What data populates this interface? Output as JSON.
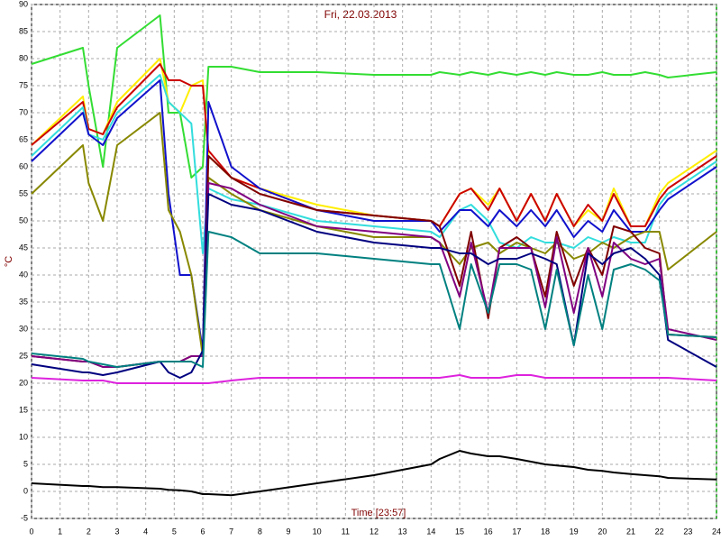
{
  "chart_data": {
    "type": "line",
    "title": "Fri, 22.03.2013",
    "y_label": "°C",
    "x_label": "Time [23:57]",
    "x": [
      0,
      1.8,
      2,
      2.5,
      3,
      4.5,
      4.8,
      5.2,
      5.6,
      6,
      6.2,
      7,
      8,
      10,
      12,
      14,
      14.3,
      15,
      15.4,
      16,
      16.4,
      17,
      17.5,
      18,
      18.4,
      19,
      19.5,
      20,
      20.4,
      21,
      21.5,
      22,
      22.3,
      24
    ],
    "series": [
      {
        "color": "#33dd33",
        "values": [
          79,
          82,
          75,
          60,
          82,
          88,
          70,
          70,
          58,
          60,
          78.5,
          78.5,
          77.5,
          77.5,
          77,
          77,
          77.5,
          77,
          77.5,
          77,
          77.5,
          77,
          77.5,
          77,
          77.5,
          77,
          77,
          77.5,
          77,
          77,
          77.5,
          77,
          76.5,
          77.5
        ]
      },
      {
        "color": "#ffee00",
        "values": [
          64,
          73,
          67,
          66,
          72,
          80,
          72,
          70,
          75,
          76,
          62,
          58,
          56,
          53,
          51,
          50,
          49,
          55,
          56,
          53,
          56,
          50,
          55,
          50,
          55,
          49,
          52,
          50,
          56,
          49,
          49,
          55,
          57,
          63
        ]
      },
      {
        "color": "#cc0000",
        "values": [
          64,
          72,
          67,
          66,
          71,
          79,
          76,
          76,
          75,
          75,
          63,
          58,
          56,
          52,
          51,
          50,
          49,
          55,
          56,
          52,
          56,
          50,
          55,
          50,
          55,
          49,
          53,
          50,
          55,
          49,
          49,
          54,
          56,
          62
        ]
      },
      {
        "color": "#33dddd",
        "values": [
          62,
          71,
          66,
          65,
          70,
          77,
          72,
          70,
          68,
          44,
          56,
          54,
          53,
          50,
          49,
          48,
          47,
          52,
          53,
          50,
          46,
          45,
          47,
          46,
          46,
          45,
          47,
          46,
          47,
          46,
          46,
          53,
          55,
          61
        ]
      },
      {
        "color": "#1111cc",
        "values": [
          61,
          70,
          66,
          64,
          69,
          76,
          55,
          40,
          40,
          26,
          72,
          60,
          56,
          52,
          50,
          50,
          48,
          52,
          52,
          49,
          52,
          49,
          52,
          49,
          52,
          47,
          50,
          48,
          52,
          48,
          48,
          52,
          54,
          60
        ]
      },
      {
        "color": "#888800",
        "values": [
          55,
          64,
          57,
          50,
          64,
          70,
          52,
          48,
          40,
          25,
          58,
          55,
          52,
          49,
          47,
          47,
          46,
          42,
          45,
          46,
          44,
          46,
          45,
          44,
          46,
          43,
          44,
          46,
          45,
          47,
          48,
          48,
          41,
          48
        ]
      },
      {
        "color": "#800000",
        "values": [
          25,
          24,
          24,
          23,
          23,
          24,
          24,
          24,
          25,
          25,
          62,
          58,
          55,
          52,
          51,
          50,
          49,
          38,
          48,
          32,
          45,
          47,
          45,
          36,
          48,
          38,
          45,
          40,
          49,
          48,
          45,
          44,
          29,
          28.5
        ]
      },
      {
        "color": "#800080",
        "values": [
          25,
          24,
          24,
          23,
          23,
          24,
          24,
          24,
          25,
          25,
          57,
          56,
          53,
          49,
          48,
          47,
          46,
          36,
          46,
          33,
          45,
          45,
          45,
          34,
          47,
          33,
          45,
          36,
          46,
          43,
          42,
          43,
          30,
          28
        ]
      },
      {
        "color": "#000080",
        "values": [
          23.5,
          22,
          22,
          21.5,
          22,
          24,
          22,
          21,
          22,
          26,
          55,
          53,
          52,
          48,
          46,
          45,
          45,
          44,
          44,
          42,
          43,
          43,
          44,
          43,
          42,
          27,
          44,
          42,
          44,
          45,
          43,
          40,
          28,
          23
        ]
      },
      {
        "color": "#008080",
        "values": [
          25.5,
          24.5,
          24,
          23.5,
          23,
          24,
          24,
          24,
          24,
          23,
          48,
          47,
          44,
          44,
          43,
          42,
          42,
          30,
          42,
          33,
          42,
          42,
          41,
          30,
          41,
          27,
          40,
          30,
          41,
          42,
          41,
          39,
          29,
          28.5
        ]
      },
      {
        "color": "#dd22dd",
        "values": [
          21,
          20.5,
          20.5,
          20.5,
          20,
          20,
          20,
          20,
          20,
          20,
          20,
          20.5,
          21,
          21,
          21,
          21,
          21,
          21.5,
          21,
          21,
          21,
          21.5,
          21.5,
          21,
          21,
          21,
          21,
          21,
          21,
          21,
          21,
          21,
          21,
          20.5
        ]
      },
      {
        "color": "#000000",
        "values": [
          1.5,
          1,
          1,
          0.8,
          0.8,
          0.5,
          0.3,
          0.2,
          0,
          -0.5,
          -0.5,
          -0.7,
          0,
          1.5,
          3,
          5,
          6,
          7.5,
          7,
          6.5,
          6.5,
          6,
          5.5,
          5,
          4.8,
          4.5,
          4,
          3.8,
          3.5,
          3.2,
          3,
          2.8,
          2.5,
          2.2
        ]
      }
    ],
    "xlim": [
      0,
      24
    ],
    "xticks": [
      0,
      1,
      2,
      3,
      4,
      5,
      6,
      7,
      8,
      9,
      10,
      11,
      12,
      13,
      14,
      15,
      16,
      17,
      18,
      19,
      20,
      21,
      22,
      23,
      24
    ],
    "ylim": [
      -5,
      90
    ],
    "yticks": [
      -5,
      0,
      5,
      10,
      15,
      20,
      25,
      30,
      35,
      40,
      45,
      50,
      55,
      60,
      65,
      70,
      75,
      80,
      85,
      90
    ],
    "grid": true
  }
}
